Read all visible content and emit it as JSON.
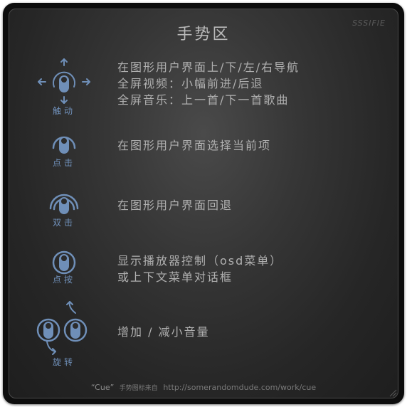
{
  "title": "手势区",
  "watermark": "SSSIFIE",
  "accent_color": "#6f8fb8",
  "gestures": [
    {
      "icon": "touch-move-icon",
      "label": "触动",
      "lines": [
        "在图形用户界面上/下/左/右导航",
        "全屏视频：小幅前进/后退",
        "全屏音乐：上一首/下一首歌曲"
      ]
    },
    {
      "icon": "tap-icon",
      "label": "点击",
      "lines": [
        "在图形用户界面选择当前项"
      ]
    },
    {
      "icon": "double-tap-icon",
      "label": "双击",
      "lines": [
        "在图形用户界面回退"
      ]
    },
    {
      "icon": "press-icon",
      "label": "点按",
      "lines": [
        "显示播放器控制（osd菜单）",
        "或上下文菜单对话框"
      ]
    },
    {
      "icon": "rotate-icon",
      "label": "旋转",
      "lines": [
        "增加 / 减小音量"
      ]
    }
  ],
  "footer": {
    "cue": "“Cue”",
    "credit": "手势图标来自",
    "url": "http://somerandomdude.com/work/cue"
  }
}
